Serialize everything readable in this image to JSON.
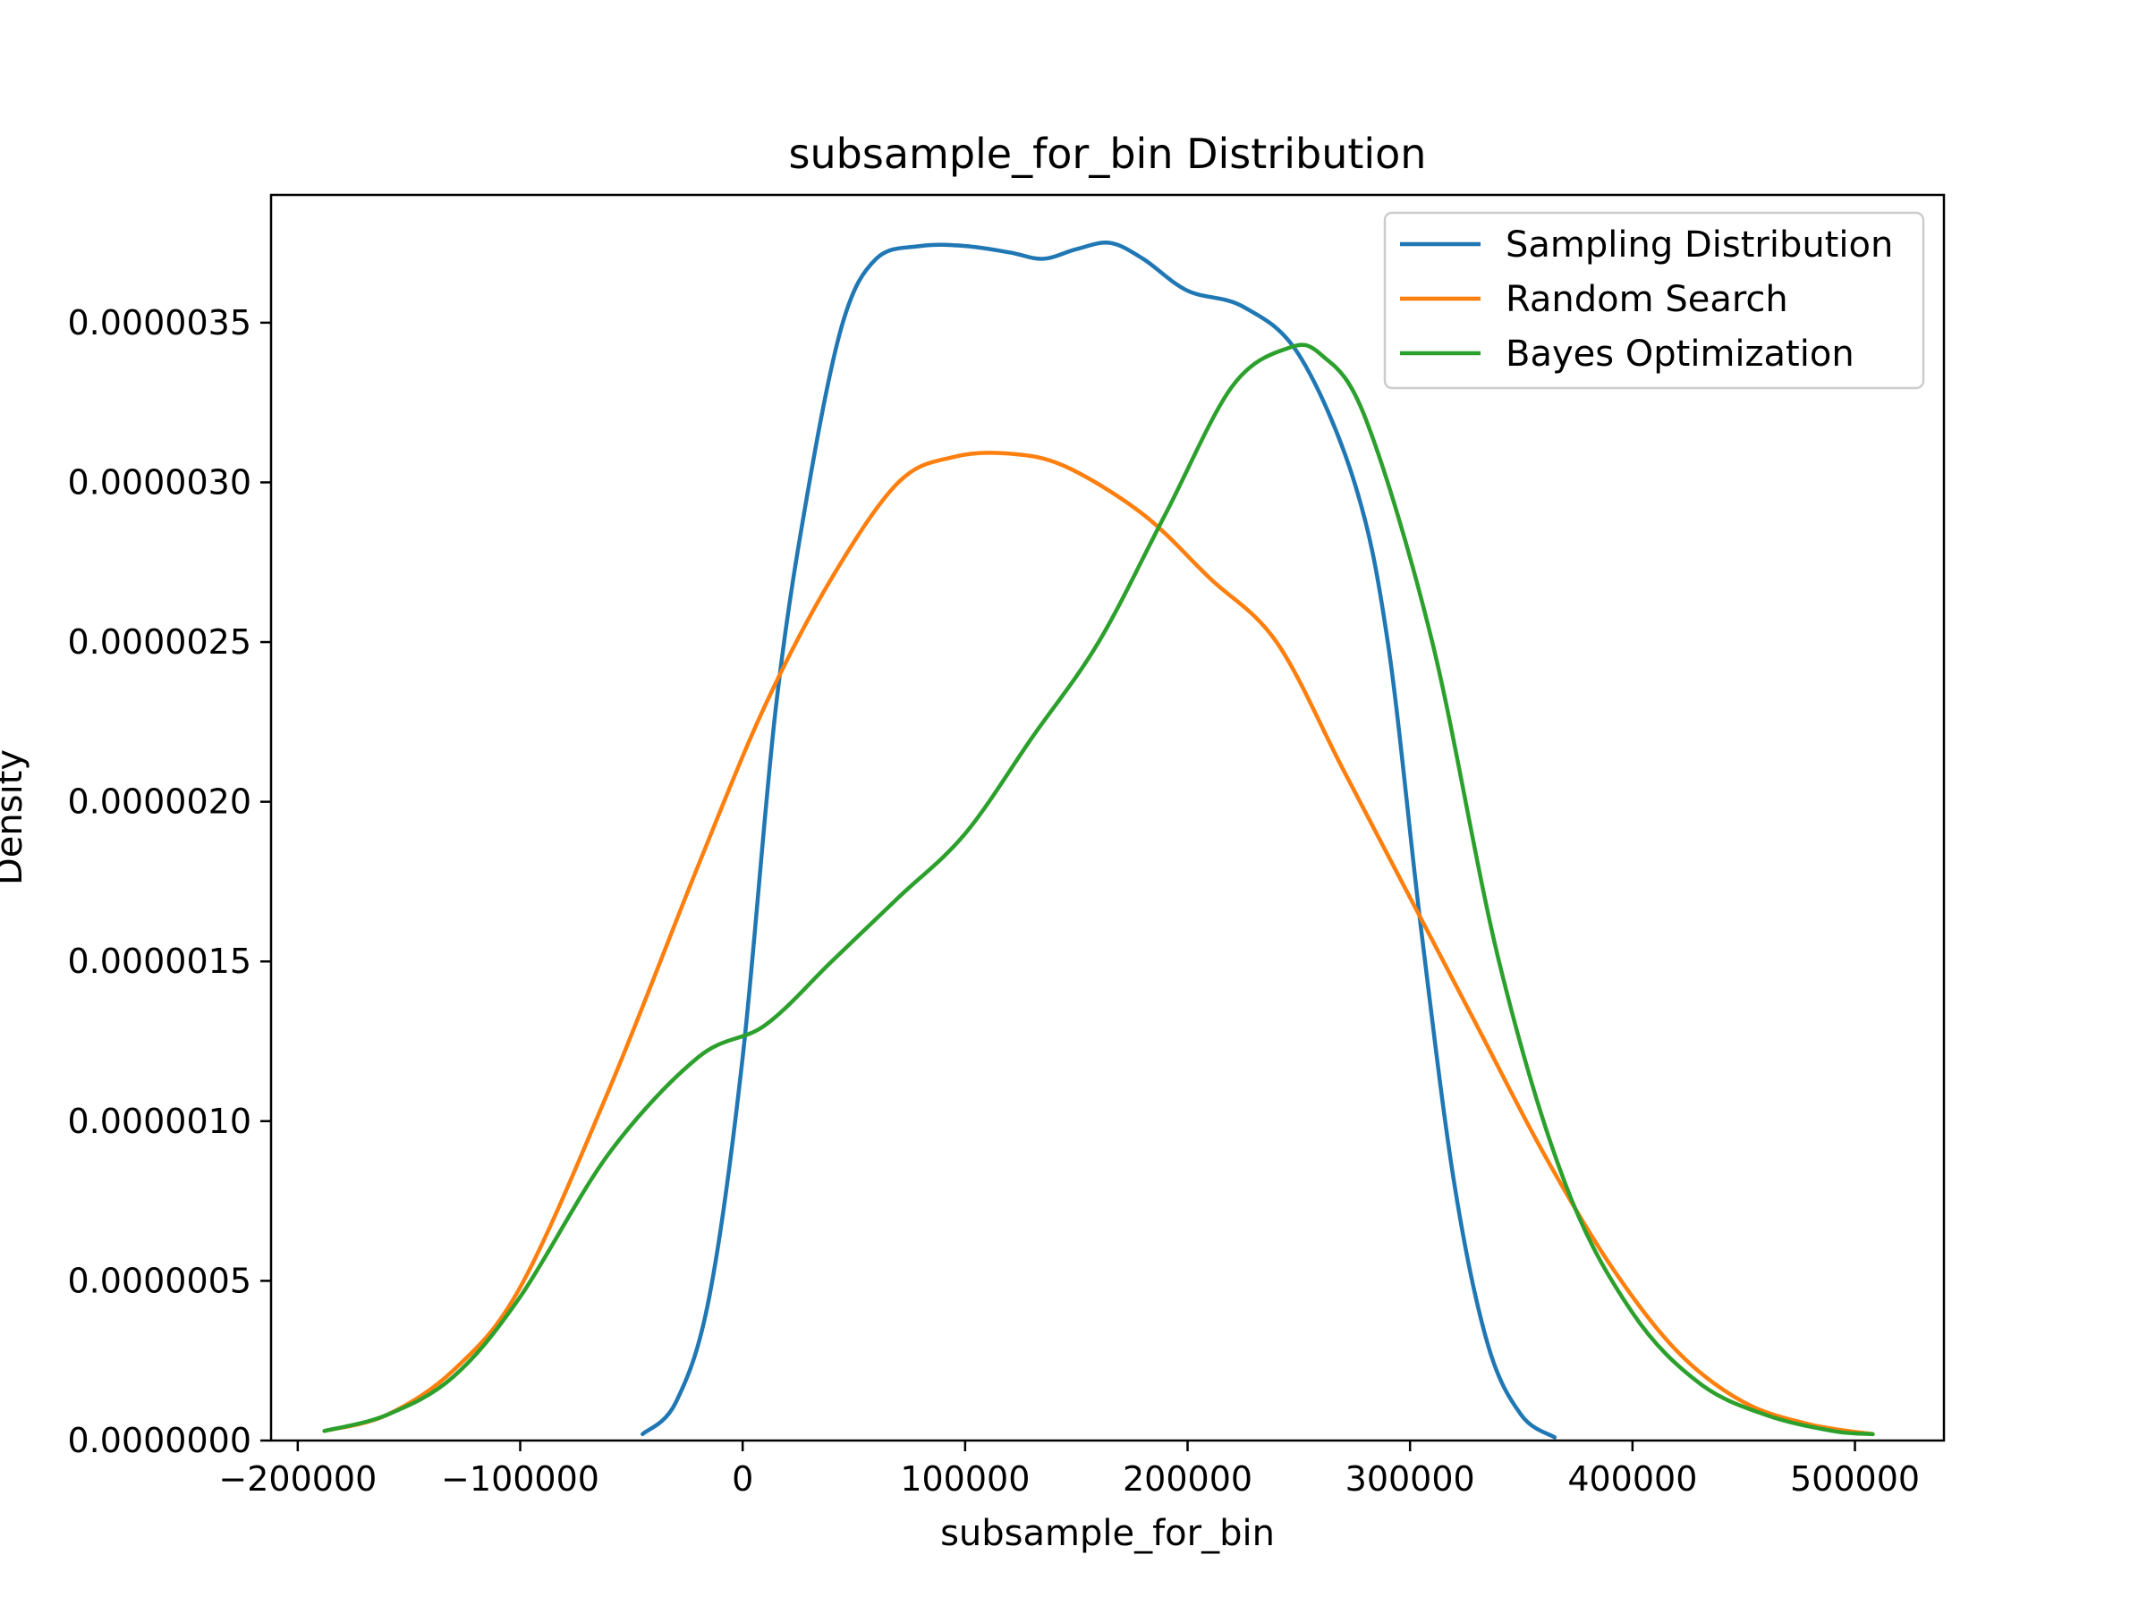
{
  "chart_data": {
    "type": "line",
    "title": "subsample_for_bin Distribution",
    "xlabel": "subsample_for_bin",
    "ylabel": "Density",
    "xlim": [
      -212000,
      540000
    ],
    "ylim": [
      0,
      3.9e-06
    ],
    "xticks": [
      -200000,
      -100000,
      0,
      100000,
      200000,
      300000,
      400000,
      500000
    ],
    "xtick_labels": [
      "−200000",
      "−100000",
      "0",
      "100000",
      "200000",
      "300000",
      "400000",
      "500000"
    ],
    "yticks": [
      0,
      5e-07,
      1e-06,
      1.5e-06,
      2e-06,
      2.5e-06,
      3e-06,
      3.5e-06
    ],
    "ytick_labels": [
      "0.0000000",
      "0.0000005",
      "0.0000010",
      "0.0000015",
      "0.0000020",
      "0.0000025",
      "0.0000030",
      "0.0000035"
    ],
    "grid": false,
    "legend_position": "top-right",
    "series": [
      {
        "name": "Sampling Distribution",
        "color": "#1f77b4",
        "points": [
          [
            -45000,
            2e-08
          ],
          [
            -30000,
            1.2e-07
          ],
          [
            -15000,
            4.5e-07
          ],
          [
            0,
            1.2e-06
          ],
          [
            15000,
            2.3e-06
          ],
          [
            30000,
            3e-06
          ],
          [
            45000,
            3.5e-06
          ],
          [
            60000,
            3.7e-06
          ],
          [
            80000,
            3.74e-06
          ],
          [
            100000,
            3.74e-06
          ],
          [
            120000,
            3.72e-06
          ],
          [
            135000,
            3.7e-06
          ],
          [
            150000,
            3.73e-06
          ],
          [
            165000,
            3.75e-06
          ],
          [
            180000,
            3.7e-06
          ],
          [
            200000,
            3.6e-06
          ],
          [
            225000,
            3.55e-06
          ],
          [
            250000,
            3.4e-06
          ],
          [
            275000,
            3e-06
          ],
          [
            290000,
            2.5e-06
          ],
          [
            305000,
            1.6e-06
          ],
          [
            320000,
            8e-07
          ],
          [
            335000,
            3e-07
          ],
          [
            350000,
            8e-08
          ],
          [
            365000,
            1e-08
          ]
        ]
      },
      {
        "name": "Random Search",
        "color": "#ff7f0e",
        "points": [
          [
            -188000,
            3e-08
          ],
          [
            -160000,
            8e-08
          ],
          [
            -130000,
            2.2e-07
          ],
          [
            -100000,
            4.8e-07
          ],
          [
            -60000,
            1.1e-06
          ],
          [
            -20000,
            1.8e-06
          ],
          [
            10000,
            2.3e-06
          ],
          [
            40000,
            2.7e-06
          ],
          [
            70000,
            3e-06
          ],
          [
            95000,
            3.08e-06
          ],
          [
            120000,
            3.09e-06
          ],
          [
            145000,
            3.05e-06
          ],
          [
            180000,
            2.9e-06
          ],
          [
            210000,
            2.7e-06
          ],
          [
            240000,
            2.5e-06
          ],
          [
            270000,
            2.1e-06
          ],
          [
            300000,
            1.7e-06
          ],
          [
            330000,
            1.3e-06
          ],
          [
            360000,
            9e-07
          ],
          [
            390000,
            5.5e-07
          ],
          [
            420000,
            2.8e-07
          ],
          [
            450000,
            1.2e-07
          ],
          [
            480000,
            5e-08
          ],
          [
            508000,
            2e-08
          ]
        ]
      },
      {
        "name": "Bayes Optimization",
        "color": "#2ca02c",
        "points": [
          [
            -188000,
            3e-08
          ],
          [
            -160000,
            8e-08
          ],
          [
            -130000,
            2e-07
          ],
          [
            -100000,
            4.5e-07
          ],
          [
            -60000,
            9e-07
          ],
          [
            -20000,
            1.2e-06
          ],
          [
            10000,
            1.3e-06
          ],
          [
            40000,
            1.5e-06
          ],
          [
            70000,
            1.7e-06
          ],
          [
            100000,
            1.9e-06
          ],
          [
            130000,
            2.2e-06
          ],
          [
            160000,
            2.5e-06
          ],
          [
            190000,
            2.9e-06
          ],
          [
            220000,
            3.3e-06
          ],
          [
            245000,
            3.42e-06
          ],
          [
            260000,
            3.4e-06
          ],
          [
            280000,
            3.2e-06
          ],
          [
            310000,
            2.5e-06
          ],
          [
            340000,
            1.5e-06
          ],
          [
            370000,
            8e-07
          ],
          [
            400000,
            4e-07
          ],
          [
            430000,
            1.8e-07
          ],
          [
            460000,
            8e-08
          ],
          [
            490000,
            3e-08
          ],
          [
            508000,
            2e-08
          ]
        ]
      }
    ]
  }
}
